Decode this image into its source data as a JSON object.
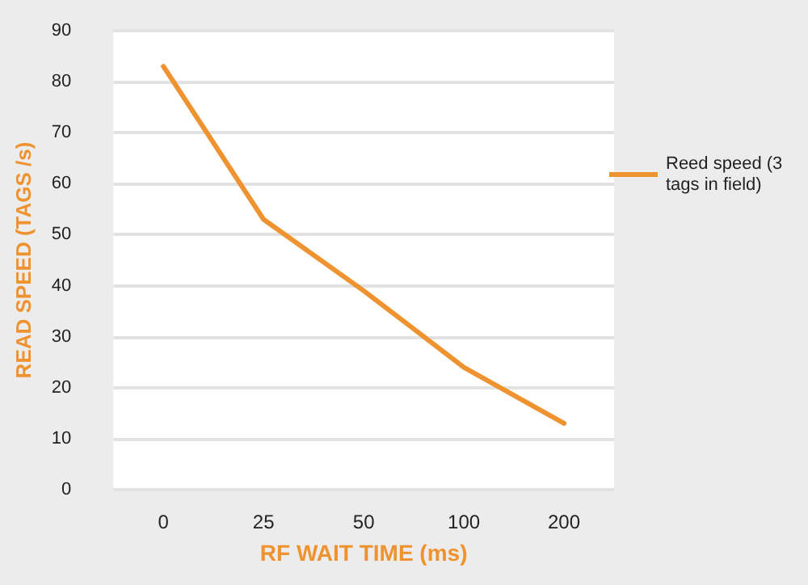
{
  "chart_data": {
    "type": "line",
    "xlabel": "RF WAIT TIME (ms)",
    "ylabel": "READ SPEED (TAGS /s)",
    "categories": [
      "0",
      "25",
      "50",
      "100",
      "200"
    ],
    "series": [
      {
        "name": "Reed speed (3 tags in field)",
        "color": "#ee9330",
        "values": [
          83,
          53,
          39,
          24,
          13
        ]
      }
    ],
    "ylim": [
      0,
      90
    ],
    "yticks": [
      0,
      10,
      20,
      30,
      40,
      50,
      60,
      70,
      80,
      90
    ],
    "grid": "y",
    "legend": "right",
    "marker": "none",
    "line_style": "solid"
  }
}
